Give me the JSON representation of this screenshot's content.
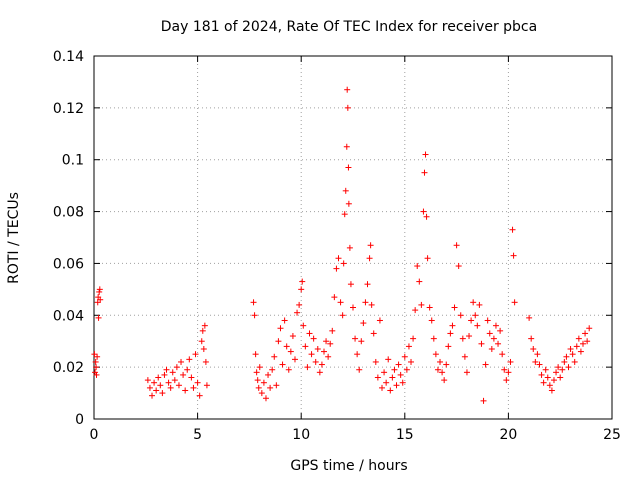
{
  "chart_data": {
    "type": "scatter",
    "title": "Day 181 of 2024, Rate Of TEC Index for receiver pbca",
    "xlabel": "GPS time / hours",
    "ylabel": "ROTI / TECUs",
    "xlim": [
      0,
      25
    ],
    "ylim": [
      0,
      0.14
    ],
    "xticks": [
      0,
      5,
      10,
      15,
      20,
      25
    ],
    "xtick_labels": [
      "0",
      "5",
      "10",
      "15",
      "20",
      "25"
    ],
    "yticks": [
      0,
      0.02,
      0.04,
      0.06,
      0.08,
      0.1,
      0.12,
      0.14
    ],
    "ytick_labels": [
      "0",
      "0.02",
      "0.04",
      "0.06",
      "0.08",
      "0.1",
      "0.12",
      "0.14"
    ],
    "grid": true,
    "marker": "+",
    "color": "#ff0000",
    "series": [
      {
        "points": [
          [
            0.02,
            0.025
          ],
          [
            0.05,
            0.018
          ],
          [
            0.08,
            0.022
          ],
          [
            0.1,
            0.02
          ],
          [
            0.12,
            0.017
          ],
          [
            0.15,
            0.024
          ],
          [
            0.18,
            0.045
          ],
          [
            0.2,
            0.047
          ],
          [
            0.22,
            0.039
          ],
          [
            0.25,
            0.049
          ],
          [
            0.28,
            0.05
          ],
          [
            0.3,
            0.046
          ],
          [
            2.6,
            0.015
          ],
          [
            2.7,
            0.012
          ],
          [
            2.8,
            0.009
          ],
          [
            2.9,
            0.014
          ],
          [
            3.0,
            0.011
          ],
          [
            3.1,
            0.016
          ],
          [
            3.2,
            0.013
          ],
          [
            3.3,
            0.01
          ],
          [
            3.4,
            0.017
          ],
          [
            3.5,
            0.019
          ],
          [
            3.6,
            0.014
          ],
          [
            3.7,
            0.012
          ],
          [
            3.8,
            0.018
          ],
          [
            3.9,
            0.015
          ],
          [
            4.0,
            0.02
          ],
          [
            4.1,
            0.013
          ],
          [
            4.2,
            0.022
          ],
          [
            4.3,
            0.017
          ],
          [
            4.4,
            0.011
          ],
          [
            4.5,
            0.019
          ],
          [
            4.6,
            0.023
          ],
          [
            4.7,
            0.016
          ],
          [
            4.8,
            0.012
          ],
          [
            4.9,
            0.025
          ],
          [
            5.0,
            0.014
          ],
          [
            5.1,
            0.009
          ],
          [
            5.2,
            0.03
          ],
          [
            5.25,
            0.034
          ],
          [
            5.3,
            0.027
          ],
          [
            5.35,
            0.036
          ],
          [
            5.4,
            0.022
          ],
          [
            5.45,
            0.013
          ],
          [
            7.7,
            0.045
          ],
          [
            7.75,
            0.04
          ],
          [
            7.8,
            0.025
          ],
          [
            7.85,
            0.018
          ],
          [
            7.9,
            0.015
          ],
          [
            7.95,
            0.012
          ],
          [
            8.0,
            0.02
          ],
          [
            8.1,
            0.01
          ],
          [
            8.2,
            0.014
          ],
          [
            8.3,
            0.008
          ],
          [
            8.4,
            0.017
          ],
          [
            8.5,
            0.012
          ],
          [
            8.6,
            0.019
          ],
          [
            8.7,
            0.024
          ],
          [
            8.8,
            0.013
          ],
          [
            8.9,
            0.03
          ],
          [
            9.0,
            0.035
          ],
          [
            9.1,
            0.021
          ],
          [
            9.2,
            0.038
          ],
          [
            9.3,
            0.028
          ],
          [
            9.4,
            0.019
          ],
          [
            9.5,
            0.026
          ],
          [
            9.6,
            0.032
          ],
          [
            9.7,
            0.023
          ],
          [
            9.8,
            0.041
          ],
          [
            9.9,
            0.044
          ],
          [
            10.0,
            0.05
          ],
          [
            10.05,
            0.053
          ],
          [
            10.1,
            0.036
          ],
          [
            10.2,
            0.028
          ],
          [
            10.3,
            0.02
          ],
          [
            10.4,
            0.033
          ],
          [
            10.5,
            0.025
          ],
          [
            10.6,
            0.031
          ],
          [
            10.7,
            0.022
          ],
          [
            10.8,
            0.027
          ],
          [
            10.9,
            0.018
          ],
          [
            11.0,
            0.021
          ],
          [
            11.1,
            0.026
          ],
          [
            11.2,
            0.03
          ],
          [
            11.3,
            0.024
          ],
          [
            11.4,
            0.029
          ],
          [
            11.5,
            0.034
          ],
          [
            11.6,
            0.047
          ],
          [
            11.7,
            0.058
          ],
          [
            11.8,
            0.062
          ],
          [
            11.9,
            0.045
          ],
          [
            12.0,
            0.04
          ],
          [
            12.05,
            0.06
          ],
          [
            12.1,
            0.079
          ],
          [
            12.15,
            0.088
          ],
          [
            12.2,
            0.105
          ],
          [
            12.22,
            0.127
          ],
          [
            12.25,
            0.12
          ],
          [
            12.28,
            0.097
          ],
          [
            12.3,
            0.083
          ],
          [
            12.35,
            0.066
          ],
          [
            12.4,
            0.052
          ],
          [
            12.5,
            0.043
          ],
          [
            12.6,
            0.031
          ],
          [
            12.7,
            0.025
          ],
          [
            12.8,
            0.019
          ],
          [
            12.9,
            0.03
          ],
          [
            13.0,
            0.037
          ],
          [
            13.1,
            0.045
          ],
          [
            13.2,
            0.052
          ],
          [
            13.3,
            0.062
          ],
          [
            13.35,
            0.067
          ],
          [
            13.4,
            0.044
          ],
          [
            13.5,
            0.033
          ],
          [
            13.6,
            0.022
          ],
          [
            13.7,
            0.016
          ],
          [
            13.8,
            0.038
          ],
          [
            13.9,
            0.012
          ],
          [
            14.0,
            0.018
          ],
          [
            14.1,
            0.014
          ],
          [
            14.2,
            0.023
          ],
          [
            14.3,
            0.011
          ],
          [
            14.4,
            0.016
          ],
          [
            14.5,
            0.019
          ],
          [
            14.6,
            0.013
          ],
          [
            14.7,
            0.021
          ],
          [
            14.8,
            0.017
          ],
          [
            14.9,
            0.014
          ],
          [
            15.0,
            0.024
          ],
          [
            15.1,
            0.019
          ],
          [
            15.2,
            0.028
          ],
          [
            15.3,
            0.022
          ],
          [
            15.4,
            0.031
          ],
          [
            15.5,
            0.042
          ],
          [
            15.6,
            0.059
          ],
          [
            15.7,
            0.053
          ],
          [
            15.8,
            0.044
          ],
          [
            15.9,
            0.08
          ],
          [
            15.95,
            0.095
          ],
          [
            16.0,
            0.102
          ],
          [
            16.05,
            0.078
          ],
          [
            16.1,
            0.062
          ],
          [
            16.2,
            0.043
          ],
          [
            16.3,
            0.038
          ],
          [
            16.4,
            0.031
          ],
          [
            16.5,
            0.025
          ],
          [
            16.6,
            0.019
          ],
          [
            16.7,
            0.022
          ],
          [
            16.8,
            0.018
          ],
          [
            16.9,
            0.015
          ],
          [
            17.0,
            0.021
          ],
          [
            17.1,
            0.028
          ],
          [
            17.2,
            0.033
          ],
          [
            17.3,
            0.036
          ],
          [
            17.4,
            0.043
          ],
          [
            17.5,
            0.067
          ],
          [
            17.6,
            0.059
          ],
          [
            17.7,
            0.04
          ],
          [
            17.8,
            0.031
          ],
          [
            17.9,
            0.024
          ],
          [
            18.0,
            0.018
          ],
          [
            18.1,
            0.032
          ],
          [
            18.2,
            0.038
          ],
          [
            18.3,
            0.045
          ],
          [
            18.4,
            0.04
          ],
          [
            18.5,
            0.036
          ],
          [
            18.6,
            0.044
          ],
          [
            18.7,
            0.029
          ],
          [
            18.8,
            0.007
          ],
          [
            18.9,
            0.021
          ],
          [
            19.0,
            0.038
          ],
          [
            19.1,
            0.033
          ],
          [
            19.2,
            0.027
          ],
          [
            19.3,
            0.031
          ],
          [
            19.4,
            0.036
          ],
          [
            19.5,
            0.029
          ],
          [
            19.6,
            0.034
          ],
          [
            19.7,
            0.025
          ],
          [
            19.8,
            0.019
          ],
          [
            19.9,
            0.015
          ],
          [
            20.0,
            0.018
          ],
          [
            20.1,
            0.022
          ],
          [
            20.2,
            0.073
          ],
          [
            20.25,
            0.063
          ],
          [
            20.3,
            0.045
          ],
          [
            21.0,
            0.039
          ],
          [
            21.1,
            0.031
          ],
          [
            21.2,
            0.027
          ],
          [
            21.3,
            0.022
          ],
          [
            21.4,
            0.025
          ],
          [
            21.5,
            0.021
          ],
          [
            21.6,
            0.017
          ],
          [
            21.7,
            0.014
          ],
          [
            21.8,
            0.019
          ],
          [
            21.9,
            0.016
          ],
          [
            22.0,
            0.013
          ],
          [
            22.1,
            0.011
          ],
          [
            22.2,
            0.015
          ],
          [
            22.3,
            0.018
          ],
          [
            22.4,
            0.02
          ],
          [
            22.5,
            0.016
          ],
          [
            22.6,
            0.019
          ],
          [
            22.7,
            0.022
          ],
          [
            22.8,
            0.024
          ],
          [
            22.9,
            0.02
          ],
          [
            23.0,
            0.027
          ],
          [
            23.1,
            0.025
          ],
          [
            23.2,
            0.022
          ],
          [
            23.3,
            0.028
          ],
          [
            23.4,
            0.031
          ],
          [
            23.5,
            0.026
          ],
          [
            23.6,
            0.029
          ],
          [
            23.7,
            0.033
          ],
          [
            23.8,
            0.03
          ],
          [
            23.9,
            0.035
          ]
        ]
      }
    ]
  }
}
